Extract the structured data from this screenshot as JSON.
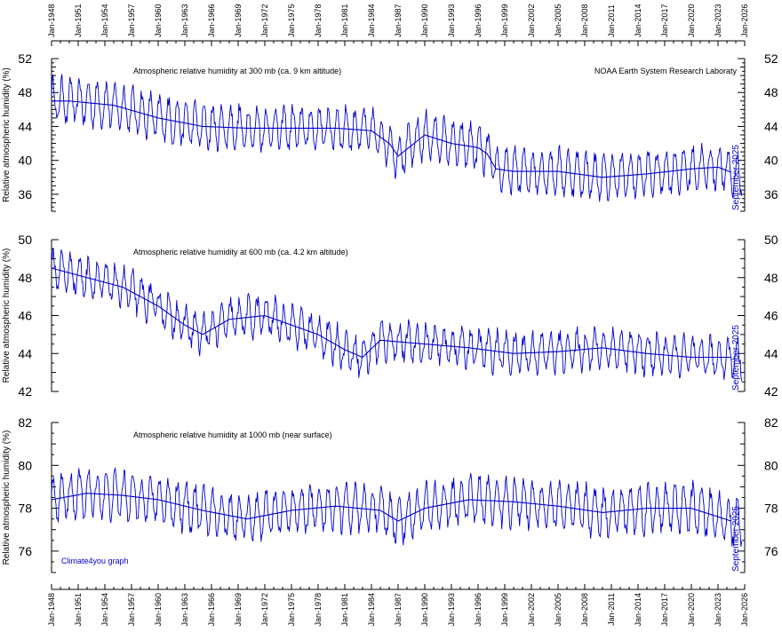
{
  "source_label": "NOAA Earth System Research Laboraty",
  "credit": "Climate4you graph",
  "end_label": "September 2025",
  "colors": {
    "series": "#0000cc",
    "axis": "#000000",
    "text_blue": "#0000cc"
  },
  "x_ticks": [
    "Jan-1948",
    "Jan-1951",
    "Jan-1954",
    "Jan-1957",
    "Jan-1960",
    "Jan-1963",
    "Jan-1966",
    "Jan-1969",
    "Jan-1972",
    "Jan-1975",
    "Jan-1978",
    "Jan-1981",
    "Jan-1984",
    "Jan-1987",
    "Jan-1990",
    "Jan-1993",
    "Jan-1996",
    "Jan-1999",
    "Jan-2002",
    "Jan-2005",
    "Jan-2008",
    "Jan-2011",
    "Jan-2014",
    "Jan-2017",
    "Jan-2020",
    "Jan-2023",
    "Jan-2026"
  ],
  "chart_data": [
    {
      "type": "line",
      "title": "Atmospheric relative humidity at 300 mb (ca. 9 km altitude)",
      "ylabel": "Relative atmospheric humidity (%)",
      "xlim": [
        1948,
        2026
      ],
      "ylim": [
        34,
        52
      ],
      "yticks": [
        36,
        40,
        44,
        48,
        52
      ],
      "series": [
        {
          "style": "monthly",
          "amplitude": 2.4,
          "noise": 0.8,
          "x": [
            1948,
            1950,
            1955,
            1960,
            1965,
            1970,
            1975,
            1980,
            1984,
            1986,
            1987,
            1990,
            1993,
            1996,
            1997,
            1998,
            2000,
            2005,
            2010,
            2015,
            2020,
            2023,
            2025.7
          ],
          "y": [
            47.0,
            47.0,
            46.5,
            45.0,
            44.0,
            43.8,
            43.8,
            43.8,
            43.5,
            42.0,
            40.5,
            43.0,
            42.0,
            41.5,
            40.8,
            39.0,
            38.7,
            38.7,
            38.0,
            38.4,
            39.0,
            39.2,
            38.0
          ]
        },
        {
          "style": "smoothed",
          "x": [
            1948,
            1950,
            1955,
            1960,
            1965,
            1970,
            1975,
            1980,
            1984,
            1986,
            1987,
            1990,
            1993,
            1996,
            1997,
            1998,
            2000,
            2005,
            2010,
            2015,
            2020,
            2023,
            2024.5
          ],
          "y": [
            47.0,
            47.0,
            46.5,
            45.0,
            44.0,
            43.8,
            43.8,
            43.8,
            43.5,
            42.0,
            40.5,
            43.0,
            42.0,
            41.5,
            40.8,
            39.0,
            38.7,
            38.7,
            38.0,
            38.4,
            39.0,
            39.2,
            38.6
          ]
        }
      ]
    },
    {
      "type": "line",
      "title": "Atmospheric relative humidity at 600 mb (ca. 4.2 km altitude)",
      "ylabel": "Relative atmospheric humidity (%)",
      "xlim": [
        1948,
        2026
      ],
      "ylim": [
        42,
        50
      ],
      "yticks": [
        42,
        44,
        46,
        48,
        50
      ],
      "series": [
        {
          "style": "monthly",
          "amplitude": 0.9,
          "noise": 0.4,
          "x": [
            1948,
            1952,
            1956,
            1960,
            1963,
            1965,
            1968,
            1972,
            1975,
            1978,
            1981,
            1983,
            1985,
            1990,
            1995,
            2000,
            2005,
            2010,
            2015,
            2020,
            2025.7
          ],
          "y": [
            48.5,
            48.0,
            47.5,
            46.5,
            45.5,
            45.0,
            45.8,
            46.0,
            45.5,
            45.0,
            44.2,
            43.8,
            44.7,
            44.5,
            44.3,
            44.0,
            44.1,
            44.3,
            44.0,
            43.8,
            43.8
          ]
        },
        {
          "style": "smoothed",
          "x": [
            1948,
            1952,
            1956,
            1960,
            1963,
            1965,
            1968,
            1972,
            1975,
            1978,
            1981,
            1983,
            1985,
            1990,
            1995,
            2000,
            2005,
            2010,
            2015,
            2020,
            2024.5
          ],
          "y": [
            48.5,
            48.0,
            47.5,
            46.5,
            45.5,
            45.0,
            45.8,
            46.0,
            45.5,
            45.0,
            44.2,
            43.8,
            44.7,
            44.5,
            44.3,
            44.0,
            44.1,
            44.3,
            44.0,
            43.8,
            43.8
          ]
        }
      ]
    },
    {
      "type": "line",
      "title": "Atmospheric relative humidity at 1000 mb (near surface)",
      "ylabel": "Relative atmospheric humidity (%)",
      "xlim": [
        1948,
        2026
      ],
      "ylim": [
        75,
        82
      ],
      "yticks": [
        76,
        78,
        80,
        82
      ],
      "series": [
        {
          "style": "monthly",
          "amplitude": 1.0,
          "noise": 0.35,
          "x": [
            1948,
            1952,
            1956,
            1960,
            1965,
            1970,
            1975,
            1980,
            1985,
            1987,
            1990,
            1995,
            2000,
            2005,
            2010,
            2015,
            2020,
            2023,
            2025.7
          ],
          "y": [
            78.4,
            78.7,
            78.6,
            78.4,
            77.9,
            77.5,
            77.9,
            78.1,
            77.9,
            77.4,
            78.0,
            78.4,
            78.3,
            78.1,
            77.8,
            78.0,
            78.0,
            77.6,
            77.2
          ]
        },
        {
          "style": "smoothed",
          "x": [
            1948,
            1952,
            1956,
            1960,
            1965,
            1970,
            1975,
            1980,
            1985,
            1987,
            1990,
            1995,
            2000,
            2005,
            2010,
            2015,
            2020,
            2023,
            2024.5
          ],
          "y": [
            78.4,
            78.7,
            78.6,
            78.4,
            77.9,
            77.5,
            77.9,
            78.1,
            77.9,
            77.4,
            78.0,
            78.4,
            78.3,
            78.1,
            77.8,
            78.0,
            78.0,
            77.6,
            77.4
          ]
        }
      ]
    }
  ]
}
